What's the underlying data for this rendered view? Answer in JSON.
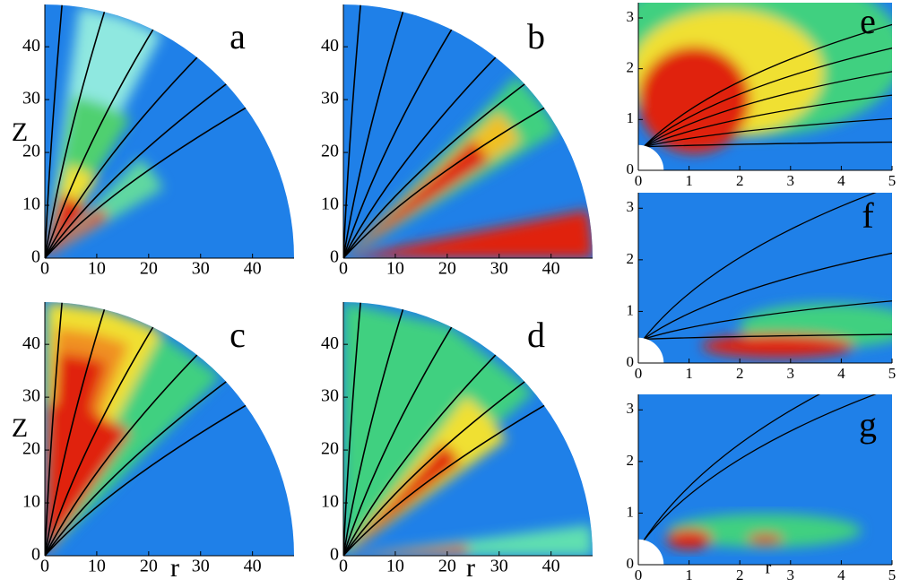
{
  "panels": [
    {
      "label": "a",
      "xlim": [
        0,
        48
      ],
      "ylim": [
        0,
        48
      ],
      "xticks": [
        0,
        10,
        20,
        30,
        40
      ],
      "yticks": [
        0,
        10,
        20,
        30,
        40
      ],
      "ylabel": "Z"
    },
    {
      "label": "b",
      "xlim": [
        0,
        48
      ],
      "ylim": [
        0,
        48
      ],
      "xticks": [
        0,
        10,
        20,
        30,
        40
      ],
      "yticks": [
        0,
        10,
        20,
        30,
        40
      ]
    },
    {
      "label": "c",
      "xlim": [
        0,
        48
      ],
      "ylim": [
        0,
        48
      ],
      "xticks": [
        0,
        10,
        20,
        30,
        40
      ],
      "yticks": [
        0,
        10,
        20,
        30,
        40
      ],
      "xlabel": "r",
      "ylabel": "Z"
    },
    {
      "label": "d",
      "xlim": [
        0,
        48
      ],
      "ylim": [
        0,
        48
      ],
      "xticks": [
        0,
        10,
        20,
        30,
        40
      ],
      "yticks": [
        0,
        10,
        20,
        30,
        40
      ],
      "xlabel": "r"
    },
    {
      "label": "e",
      "xlim": [
        0,
        5
      ],
      "ylim": [
        0,
        3.3
      ],
      "xticks": [
        0,
        1,
        2,
        3,
        4,
        5
      ],
      "yticks": [
        0,
        1,
        2,
        3
      ]
    },
    {
      "label": "f",
      "xlim": [
        0,
        5
      ],
      "ylim": [
        0,
        3.3
      ],
      "xticks": [
        0,
        1,
        2,
        3,
        4,
        5
      ],
      "yticks": [
        0,
        1,
        2,
        3
      ]
    },
    {
      "label": "g",
      "xlim": [
        0,
        5
      ],
      "ylim": [
        0,
        3.3
      ],
      "xticks": [
        0,
        1,
        2,
        3,
        4,
        5
      ],
      "yticks": [
        0,
        1,
        2,
        3
      ],
      "xlabel": "r"
    }
  ]
}
